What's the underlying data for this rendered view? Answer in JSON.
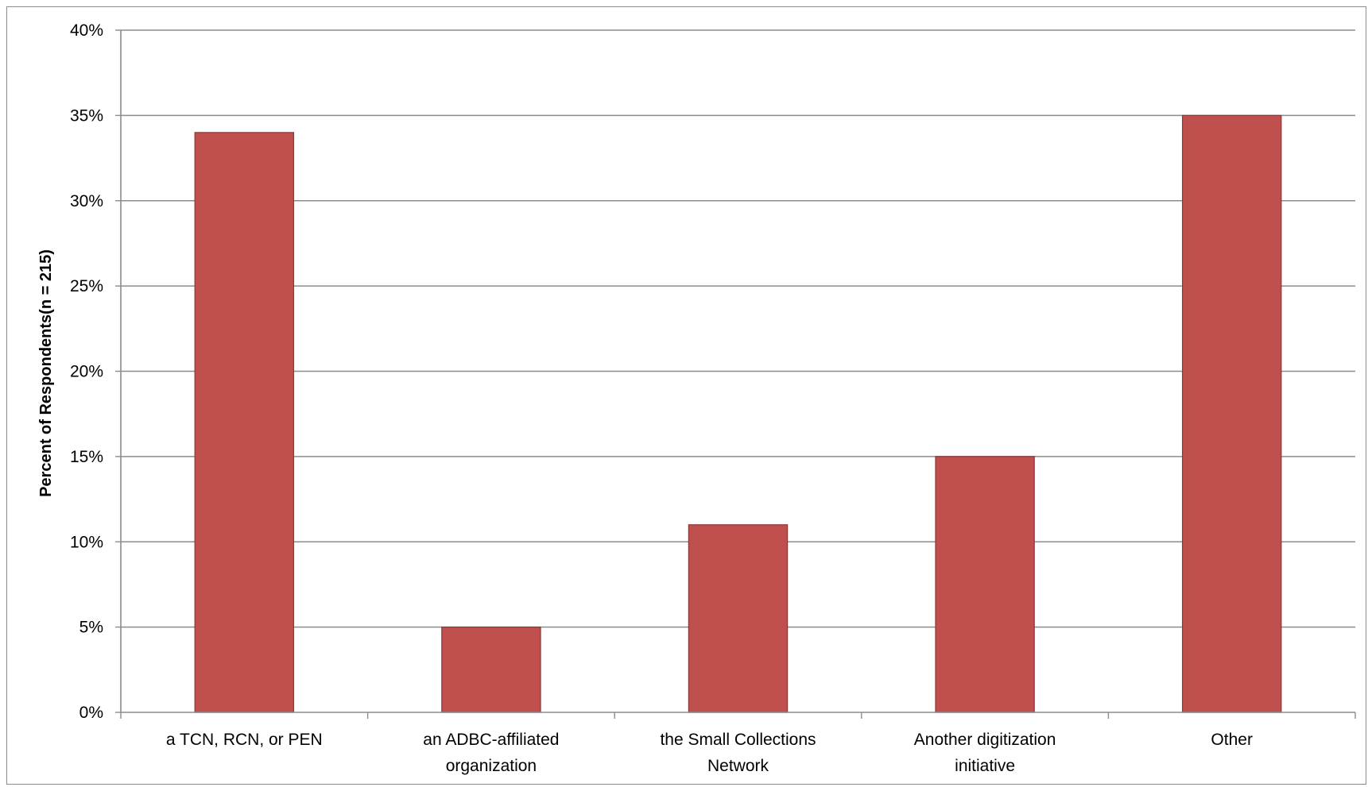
{
  "chart_data": {
    "type": "bar",
    "title": "",
    "xlabel": "",
    "ylabel": "Percent of Respondents(n = 215)",
    "categories": [
      "a TCN, RCN, or PEN",
      "an ADBC-affiliated organization",
      "the Small Collections Network",
      "Another digitization initiative",
      "Other"
    ],
    "category_label_lines": [
      [
        "a TCN, RCN, or PEN"
      ],
      [
        "an ADBC-affiliated",
        "organization"
      ],
      [
        "the Small Collections",
        "Network"
      ],
      [
        "Another digitization",
        "initiative"
      ],
      [
        "Other"
      ]
    ],
    "values": [
      34,
      5,
      11,
      15,
      35
    ],
    "ylim": [
      0,
      40
    ],
    "yticks": [
      0,
      5,
      10,
      15,
      20,
      25,
      30,
      35,
      40
    ],
    "ytick_labels": [
      "0%",
      "5%",
      "10%",
      "15%",
      "20%",
      "25%",
      "30%",
      "35%",
      "40%"
    ],
    "grid": true,
    "legend": "none",
    "bar_color": "#c0504d",
    "bar_edge_color": "#8c3836",
    "grid_color": "#8c8c8c"
  }
}
